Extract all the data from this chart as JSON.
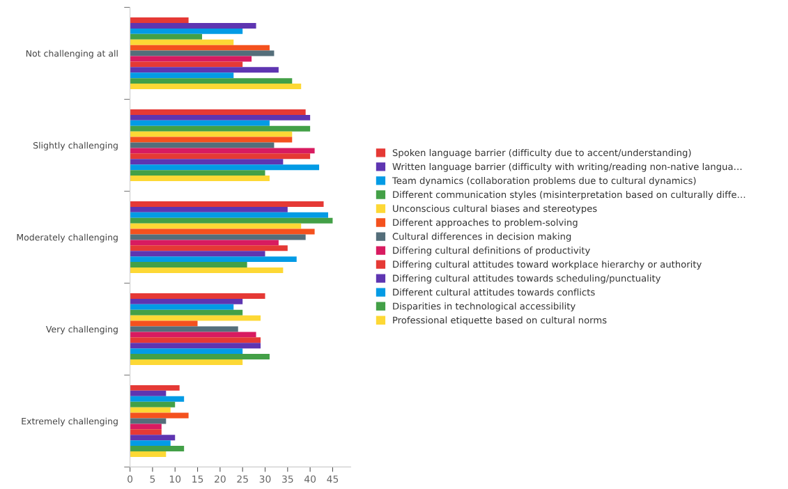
{
  "chart_data": {
    "type": "bar",
    "orientation": "horizontal",
    "categories": [
      "Not challenging at all",
      "Slightly challenging",
      "Moderately challenging",
      "Very challenging",
      "Extremely challenging"
    ],
    "xlim": [
      0,
      49
    ],
    "xticks": [
      0,
      5,
      10,
      15,
      20,
      25,
      30,
      35,
      40,
      45
    ],
    "grid": false,
    "legend": "right",
    "series": [
      {
        "name": "Spoken language barrier (difficulty due to accent/understanding)",
        "color": "#e53935",
        "values": [
          13,
          39,
          43,
          30,
          11
        ]
      },
      {
        "name": "Written language barrier (difficulty with writing/reading non-native langua…",
        "color": "#5e35b1",
        "values": [
          28,
          40,
          35,
          25,
          8
        ]
      },
      {
        "name": "Team dynamics (collaboration problems due to cultural dynamics)",
        "color": "#039be5",
        "values": [
          25,
          31,
          44,
          23,
          12
        ]
      },
      {
        "name": "Different communication styles (misinterpretation based on culturally diffe…",
        "color": "#43a047",
        "values": [
          16,
          40,
          45,
          25,
          10
        ]
      },
      {
        "name": "Unconscious cultural biases and stereotypes",
        "color": "#fdd835",
        "values": [
          23,
          36,
          38,
          29,
          9
        ]
      },
      {
        "name": "Different approaches to problem-solving",
        "color": "#f4511e",
        "values": [
          31,
          36,
          41,
          15,
          13
        ]
      },
      {
        "name": "Cultural differences in decision making",
        "color": "#546e7a",
        "values": [
          32,
          32,
          39,
          24,
          8
        ]
      },
      {
        "name": "Differing cultural definitions of productivity",
        "color": "#d81b60",
        "values": [
          27,
          41,
          33,
          28,
          7
        ]
      },
      {
        "name": "Differing cultural attitudes toward workplace hierarchy or authority",
        "color": "#e53935",
        "values": [
          25,
          40,
          35,
          29,
          7
        ]
      },
      {
        "name": "Differing cultural attitudes towards scheduling/punctuality",
        "color": "#5e35b1",
        "values": [
          33,
          34,
          30,
          29,
          10
        ]
      },
      {
        "name": "Different cultural attitudes towards conflicts",
        "color": "#039be5",
        "values": [
          23,
          42,
          37,
          25,
          9
        ]
      },
      {
        "name": "Disparities in technological accessibility",
        "color": "#43a047",
        "values": [
          36,
          30,
          26,
          31,
          12
        ]
      },
      {
        "name": "Professional etiquette based on cultural norms",
        "color": "#fdd835",
        "values": [
          38,
          31,
          34,
          25,
          8
        ]
      }
    ]
  }
}
